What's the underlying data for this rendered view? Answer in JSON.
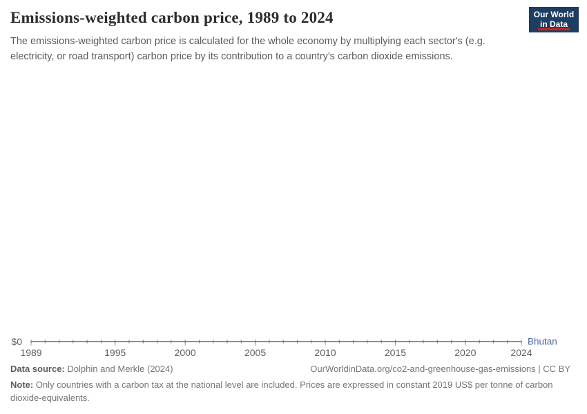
{
  "header": {
    "title": "Emissions-weighted carbon price, 1989 to 2024",
    "subtitle": "The emissions-weighted carbon price is calculated for the whole economy by multiplying each sector's (e.g. electricity, or road transport) carbon price by its contribution to a country's carbon dioxide emissions.",
    "logo": {
      "line1": "Our World",
      "line2": "in Data"
    }
  },
  "chart_data": {
    "type": "line",
    "title": "Emissions-weighted carbon price, 1989 to 2024",
    "x": [
      1989,
      1990,
      1991,
      1992,
      1993,
      1994,
      1995,
      1996,
      1997,
      1998,
      1999,
      2000,
      2001,
      2002,
      2003,
      2004,
      2005,
      2006,
      2007,
      2008,
      2009,
      2010,
      2011,
      2012,
      2013,
      2014,
      2015,
      2016,
      2017,
      2018,
      2019,
      2020,
      2021,
      2022,
      2023,
      2024
    ],
    "series": [
      {
        "name": "Bhutan",
        "color": "#4C6A9C",
        "values": [
          0,
          0,
          0,
          0,
          0,
          0,
          0,
          0,
          0,
          0,
          0,
          0,
          0,
          0,
          0,
          0,
          0,
          0,
          0,
          0,
          0,
          0,
          0,
          0,
          0,
          0,
          0,
          0,
          0,
          0,
          0,
          0,
          0,
          0,
          0,
          0
        ]
      }
    ],
    "x_ticks": [
      1989,
      1995,
      2000,
      2005,
      2010,
      2015,
      2020,
      2024
    ],
    "y_ticks": [
      {
        "value": 0,
        "label": "$0"
      }
    ],
    "xlabel": "",
    "ylabel": "",
    "grid": false,
    "legend_position": "end-of-line"
  },
  "footer": {
    "datasource_label": "Data source:",
    "datasource_value": "Dolphin and Merkle (2024)",
    "link": "OurWorldinData.org/co2-and-greenhouse-gas-emissions | CC BY",
    "note_label": "Note:",
    "note_value": "Only countries with a carbon tax at the national level are included. Prices are expressed in constant 2019 US$ per tonne of carbon dioxide-equivalents."
  }
}
